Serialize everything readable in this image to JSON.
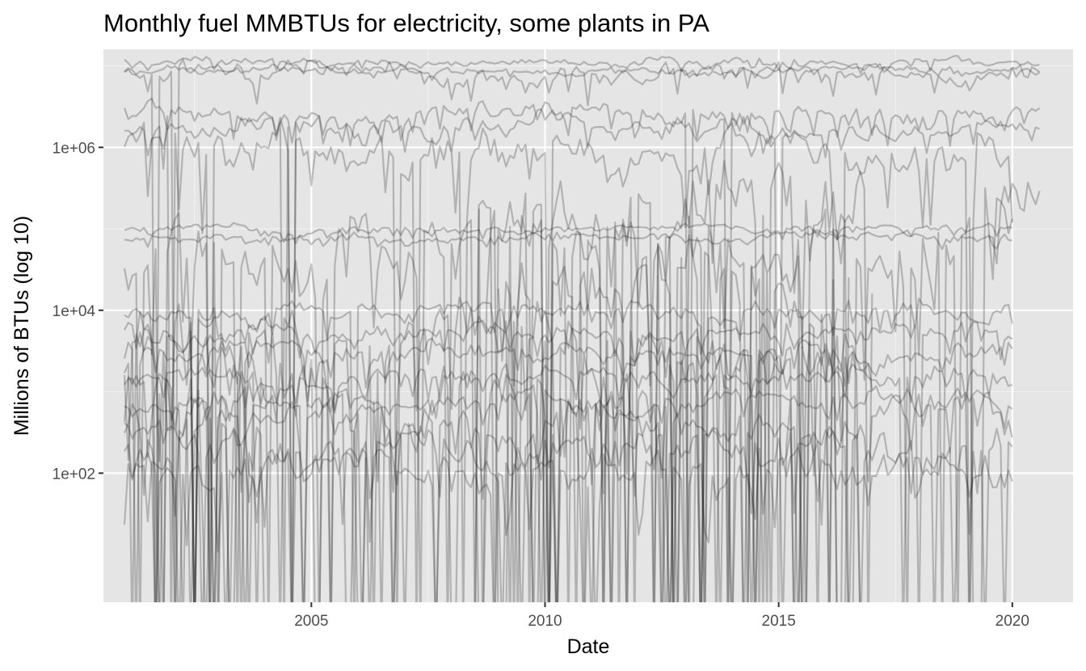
{
  "chart_data": {
    "type": "line",
    "title": "Monthly fuel MMBTUs for electricity, some plants in PA",
    "xlabel": "Date",
    "ylabel": "Millions of BTUs (log 10)",
    "y_scale": "log10",
    "xlim": [
      2000.55,
      2021.3
    ],
    "ylim": [
      2.6,
      16000000
    ],
    "x_ticks": [
      2005,
      2010,
      2015,
      2020
    ],
    "x_tick_labels": [
      "2005",
      "2010",
      "2015",
      "2020"
    ],
    "y_ticks": [
      100,
      10000,
      1000000
    ],
    "y_tick_labels": [
      "1e+02",
      "1e+04",
      "1e+06"
    ],
    "grid": true,
    "legend": "none",
    "background": "#e5e5e5",
    "line_color": "#000000",
    "line_opacity": 0.22,
    "series_summary": [
      {
        "x_start": 2001.0,
        "x_end": 2020.6,
        "typical_level": 11000000,
        "volatility": "low"
      },
      {
        "x_start": 2001.0,
        "x_end": 2020.6,
        "typical_level": 9000000,
        "volatility": "low"
      },
      {
        "x_start": 2001.0,
        "x_end": 2020.6,
        "typical_level": 8000000,
        "volatility": "medium"
      },
      {
        "x_start": 2001.0,
        "x_end": 2020.6,
        "typical_level": 2500000,
        "volatility": "medium"
      },
      {
        "x_start": 2001.0,
        "x_end": 2020.6,
        "typical_level": 1800000,
        "volatility": "medium"
      },
      {
        "x_start": 2001.0,
        "x_end": 2020.0,
        "typical_level": 1000000,
        "volatility": "high"
      },
      {
        "x_start": 2001.0,
        "x_end": 2020.0,
        "typical_level": 100000,
        "volatility": "low"
      },
      {
        "x_start": 2001.0,
        "x_end": 2020.0,
        "typical_level": 80000,
        "volatility": "low"
      },
      {
        "x_start": 2001.0,
        "x_end": 2020.0,
        "typical_level": 10000,
        "volatility": "medium"
      },
      {
        "x_start": 2001.0,
        "x_end": 2020.0,
        "typical_level": 5000,
        "volatility": "medium"
      },
      {
        "x_start": 2001.0,
        "x_end": 2020.0,
        "typical_level": 3000,
        "volatility": "medium"
      },
      {
        "x_start": 2001.0,
        "x_end": 2020.0,
        "typical_level": 1500,
        "volatility": "medium"
      },
      {
        "x_start": 2001.0,
        "x_end": 2020.0,
        "typical_level": 800,
        "volatility": "medium"
      },
      {
        "x_start": 2001.0,
        "x_end": 2020.0,
        "typical_level": 400,
        "volatility": "high"
      },
      {
        "x_start": 2001.0,
        "x_end": 2020.0,
        "typical_level": 200,
        "volatility": "high"
      },
      {
        "x_start": 2001.0,
        "x_end": 2020.0,
        "typical_level": 100,
        "volatility": "high"
      },
      {
        "x_start": 2001.0,
        "x_end": 2020.0,
        "typical_level": 50000,
        "volatility": "very high"
      },
      {
        "x_start": 2001.0,
        "x_end": 2017.0,
        "typical_level": 3000,
        "volatility": "very high"
      },
      {
        "x_start": 2001.0,
        "x_end": 2016.8,
        "typical_level": 1000,
        "volatility": "very high"
      },
      {
        "x_start": 2001.0,
        "x_end": 2004.0,
        "typical_level": 2000,
        "volatility": "very high"
      },
      {
        "x_start": 2001.0,
        "x_end": 2004.0,
        "typical_level": 500,
        "volatility": "very high"
      },
      {
        "x_start": 2008.5,
        "x_end": 2017.0,
        "typical_level": 200000,
        "volatility": "very high"
      },
      {
        "x_start": 2009.0,
        "x_end": 2016.5,
        "typical_level": 30000,
        "volatility": "very high"
      },
      {
        "x_start": 2019.5,
        "x_end": 2020.6,
        "typical_level": 300000,
        "volatility": "high"
      }
    ]
  }
}
